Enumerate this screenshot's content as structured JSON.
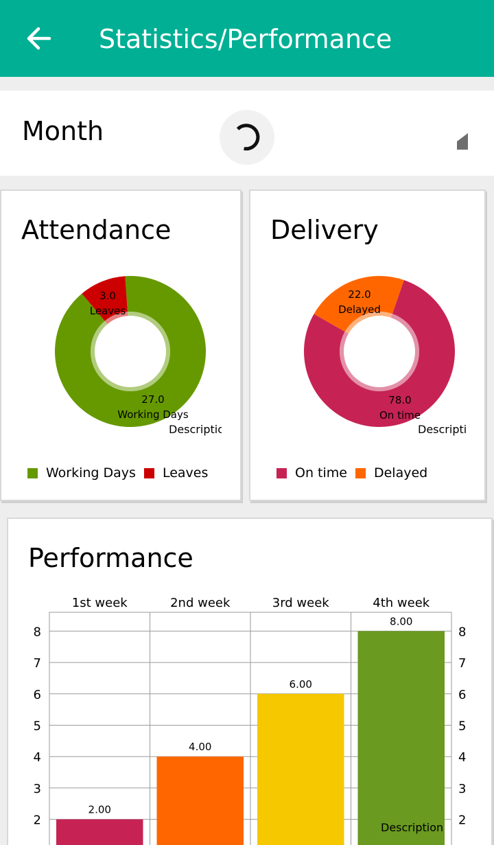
{
  "appbar": {
    "title": "Statistics/Performance",
    "back_icon": "arrow-left-icon"
  },
  "filter": {
    "label": "Month",
    "spinner_icon": "loading-spinner-icon"
  },
  "colors": {
    "primary": "#00af94",
    "working_days": "#669900",
    "leaves": "#cc0000",
    "on_time": "#c62354",
    "delayed": "#ff6600",
    "week1": "#c62354",
    "week2": "#ff6600",
    "week3": "#f5c800",
    "week4": "#6a9a1f"
  },
  "attendance": {
    "title": "Attendance",
    "description": "Description",
    "chart_data": {
      "type": "pie",
      "slices": [
        {
          "name": "Working Days",
          "value": 27.0,
          "value_label": "27.0"
        },
        {
          "name": "Leaves",
          "value": 3.0,
          "value_label": "3.0"
        }
      ]
    },
    "legend": [
      "Working Days",
      "Leaves"
    ]
  },
  "delivery": {
    "title": "Delivery",
    "description": "Description",
    "chart_data": {
      "type": "pie",
      "slices": [
        {
          "name": "On time",
          "value": 78.0,
          "value_label": "78.0"
        },
        {
          "name": "Delayed",
          "value": 22.0,
          "value_label": "22.0"
        }
      ]
    },
    "legend": [
      "On time",
      "Delayed"
    ]
  },
  "performance": {
    "title": "Performance",
    "description": "Description",
    "chart_data": {
      "type": "bar",
      "categories": [
        "1st week",
        "2nd week",
        "3rd week",
        "4th week"
      ],
      "values": [
        2.0,
        4.0,
        6.0,
        8.0
      ],
      "value_labels": [
        "2.00",
        "4.00",
        "6.00",
        "8.00"
      ],
      "yticks": [
        "2",
        "3",
        "4",
        "5",
        "6",
        "7",
        "8"
      ],
      "ylim": [
        1.4,
        8.6
      ]
    }
  }
}
